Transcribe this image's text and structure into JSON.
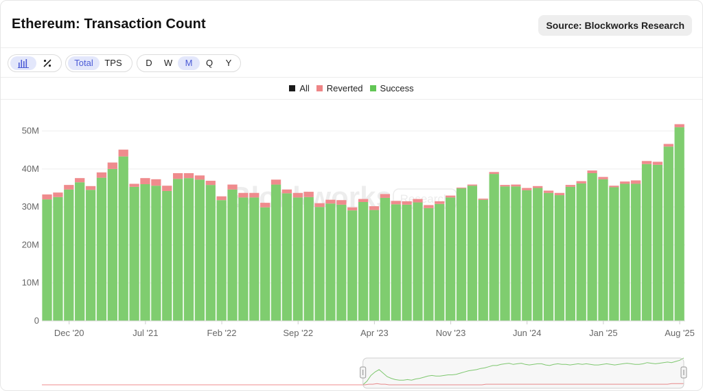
{
  "header": {
    "title": "Ethereum: Transaction Count",
    "source_label": "Source: Blockworks Research"
  },
  "toolbar": {
    "chart_type_buttons": [
      {
        "icon": "bar-chart-icon",
        "active": true
      },
      {
        "icon": "percent-icon",
        "active": false
      }
    ],
    "metric_buttons": [
      {
        "label": "Total",
        "active": true
      },
      {
        "label": "TPS",
        "active": false
      }
    ],
    "interval_buttons": [
      {
        "label": "D",
        "active": false
      },
      {
        "label": "W",
        "active": false
      },
      {
        "label": "M",
        "active": true
      },
      {
        "label": "Q",
        "active": false
      },
      {
        "label": "Y",
        "active": false
      }
    ]
  },
  "legend": {
    "items": [
      {
        "label": "All",
        "color": "#1a1a1a"
      },
      {
        "label": "Reverted",
        "color": "#ee8586"
      },
      {
        "label": "Success",
        "color": "#62c655"
      }
    ]
  },
  "watermark": {
    "text": "Blockworks",
    "badge": "Research"
  },
  "colors": {
    "success": "#7fcd6f",
    "reverted": "#ef8b8d",
    "grid": "#eeeeee",
    "axis_text": "#666666"
  },
  "chart_data": {
    "type": "bar",
    "stacked": true,
    "title": "Ethereum: Transaction Count",
    "series": [
      {
        "name": "Success",
        "values": [
          32.0,
          32.6,
          34.6,
          36.5,
          34.5,
          37.7,
          40.0,
          43.3,
          35.3,
          36.0,
          35.6,
          34.2,
          37.4,
          37.6,
          37.2,
          35.8,
          31.8,
          34.6,
          32.5,
          32.5,
          29.9,
          35.9,
          33.6,
          32.5,
          32.6,
          30.0,
          30.9,
          30.6,
          29.1,
          31.3,
          29.2,
          32.4,
          30.7,
          30.6,
          31.2,
          29.7,
          30.8,
          32.5,
          34.9,
          35.6,
          31.9,
          38.7,
          35.4,
          35.4,
          34.4,
          35.0,
          33.7,
          33.1,
          35.3,
          36.2,
          38.9,
          37.3,
          35.2,
          36.1,
          36.1,
          41.3,
          41.1,
          45.9,
          51.0
        ]
      },
      {
        "name": "Reverted",
        "values": [
          1.3,
          1.2,
          1.2,
          1.1,
          1.0,
          1.4,
          1.7,
          1.8,
          0.8,
          1.6,
          1.7,
          1.4,
          1.5,
          1.3,
          1.1,
          1.1,
          1.0,
          1.3,
          1.2,
          1.2,
          1.2,
          1.3,
          1.0,
          1.2,
          1.4,
          1.0,
          1.0,
          1.2,
          0.8,
          0.8,
          1.0,
          1.0,
          0.9,
          0.9,
          0.9,
          0.8,
          0.7,
          0.5,
          0.2,
          0.3,
          0.3,
          0.5,
          0.4,
          0.5,
          0.6,
          0.5,
          0.6,
          0.6,
          0.5,
          0.6,
          0.7,
          0.6,
          0.4,
          0.6,
          0.9,
          0.8,
          0.8,
          0.7,
          0.8
        ]
      }
    ],
    "x_tick_labels": [
      {
        "label": "Dec '20",
        "index": 2.5
      },
      {
        "label": "Jul '21",
        "index": 9.5
      },
      {
        "label": "Feb '22",
        "index": 16.5
      },
      {
        "label": "Sep '22",
        "index": 23.5
      },
      {
        "label": "Apr '23",
        "index": 30.5
      },
      {
        "label": "Nov '23",
        "index": 37.5
      },
      {
        "label": "Jun '24",
        "index": 44.5
      },
      {
        "label": "Jan '25",
        "index": 51.5
      },
      {
        "label": "Aug '25",
        "index": 58.5
      }
    ],
    "y_ticks": [
      "0",
      "10M",
      "20M",
      "30M",
      "40M",
      "50M"
    ],
    "y_tick_values": [
      0,
      10,
      20,
      30,
      40,
      50
    ],
    "ylim": [
      0,
      55
    ],
    "y_unit": "M",
    "grid": true,
    "legend_position": "top-center"
  },
  "navigator": {
    "success_line": [
      0,
      0,
      0,
      0,
      0,
      0,
      0,
      0,
      0,
      0,
      0,
      0,
      0,
      0,
      0,
      0,
      0,
      0,
      0,
      0,
      0,
      0,
      0,
      0,
      0,
      0,
      0,
      0,
      0,
      0,
      0,
      0,
      0,
      0,
      0,
      0,
      0,
      0,
      0,
      0,
      0,
      0,
      0,
      0,
      0,
      0,
      0,
      0,
      0,
      0,
      0,
      0,
      0,
      0,
      0,
      0,
      0,
      0,
      0,
      0,
      0,
      0,
      0,
      0,
      0,
      0,
      0,
      0,
      0,
      0,
      0,
      0,
      0,
      0,
      0,
      0,
      0,
      0,
      0,
      0,
      6,
      16,
      22,
      26,
      20,
      14,
      11,
      9,
      8,
      8,
      9,
      8,
      10,
      11,
      13,
      15,
      16,
      15,
      15,
      16,
      17,
      17,
      18,
      20,
      22,
      24,
      25,
      26,
      28,
      29,
      31,
      33,
      33,
      35,
      36,
      37,
      35,
      36,
      37,
      35,
      34,
      35,
      36,
      36,
      34,
      33,
      35,
      36,
      35,
      35,
      34,
      35,
      36,
      35,
      36,
      35,
      34,
      34,
      35,
      36,
      35,
      34,
      35,
      36,
      37,
      36,
      35,
      35,
      36,
      38,
      37,
      36,
      37,
      38,
      39,
      38,
      40,
      42,
      46
    ],
    "reverted_line": [
      0,
      0,
      0,
      0,
      0,
      0,
      0,
      0,
      0,
      0,
      0,
      0,
      0,
      0,
      0,
      0,
      0,
      0,
      0,
      0,
      0,
      0,
      0,
      0,
      0,
      0,
      0,
      0,
      0,
      0,
      0,
      0,
      0,
      0,
      0,
      0,
      0,
      0,
      0,
      0,
      0,
      0,
      0,
      0,
      0,
      0,
      0,
      0,
      0,
      0,
      0,
      0,
      0,
      0,
      0,
      0,
      0,
      0,
      0,
      0,
      0,
      0,
      0,
      0,
      0,
      0,
      0,
      0,
      0,
      0,
      0,
      0,
      0,
      0,
      0,
      0,
      0,
      0,
      0,
      0,
      0,
      1,
      1,
      2,
      1,
      1,
      0,
      0,
      0,
      0,
      0,
      0,
      0,
      0,
      0,
      0,
      0,
      0,
      0,
      0,
      0,
      0,
      0,
      0,
      0,
      0,
      0,
      0,
      0,
      0,
      1,
      1,
      1,
      1,
      1,
      1,
      1,
      1,
      1,
      1,
      1,
      1,
      1,
      1,
      1,
      1,
      1,
      1,
      1,
      1,
      1,
      1,
      1,
      1,
      1,
      1,
      1,
      1,
      1,
      1,
      1,
      1,
      1,
      1,
      1,
      1,
      1,
      1,
      1,
      1,
      1,
      1,
      1,
      1,
      1,
      1,
      2,
      2,
      2,
      2
    ],
    "window_start": 0.528,
    "window_end": 1.0
  }
}
